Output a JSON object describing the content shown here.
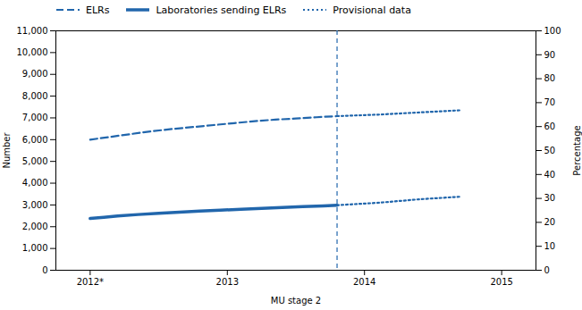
{
  "chart_data": {
    "type": "line",
    "color": "#2166AC",
    "xlabel": "MU stage 2",
    "ylabel": "Number",
    "y2label": "Percentage",
    "xlim": [
      2011.75,
      2015.25
    ],
    "xticks": [
      {
        "value": 2012,
        "label": "2012*"
      },
      2013,
      2014,
      2015
    ],
    "ylim": [
      0,
      11000
    ],
    "yticks": [
      0,
      {
        "value": 1000,
        "label": "1,000"
      },
      {
        "value": 2000,
        "label": "2,000"
      },
      {
        "value": 3000,
        "label": "3,000"
      },
      {
        "value": 4000,
        "label": "4,000"
      },
      {
        "value": 5000,
        "label": "5,000"
      },
      {
        "value": 6000,
        "label": "6,000"
      },
      {
        "value": 7000,
        "label": "7,000"
      },
      {
        "value": 8000,
        "label": "8,000"
      },
      {
        "value": 9000,
        "label": "9,000"
      },
      {
        "value": 10000,
        "label": "10,000"
      },
      {
        "value": 11000,
        "label": "11,000"
      }
    ],
    "y2lim": [
      0,
      100
    ],
    "y2ticks": [
      0,
      10,
      20,
      30,
      40,
      50,
      60,
      70,
      80,
      90,
      100
    ],
    "grid": false,
    "legend": "upper left",
    "series": [
      {
        "name": "ELRs",
        "line_style": "dashed",
        "x": [
          2012,
          2012.15,
          2012.3,
          2012.45,
          2012.6,
          2012.75,
          2012.9,
          2013.05,
          2013.2,
          2013.35,
          2013.5,
          2013.65,
          2013.8
        ],
        "values": [
          6000,
          6130,
          6260,
          6390,
          6490,
          6580,
          6670,
          6760,
          6850,
          6920,
          6970,
          7030,
          7080
        ]
      },
      {
        "name": "Laboratories sending ELRs",
        "line_style": "solid",
        "x": [
          2012,
          2012.1,
          2012.2,
          2012.35,
          2012.5,
          2012.65,
          2012.8,
          2012.95,
          2013.1,
          2013.25,
          2013.4,
          2013.55,
          2013.7,
          2013.8
        ],
        "values": [
          2380,
          2430,
          2490,
          2560,
          2620,
          2670,
          2720,
          2760,
          2800,
          2840,
          2880,
          2920,
          2960,
          2990
        ]
      },
      {
        "name": "Provisional data",
        "line_style": "dotted",
        "x": [
          2013.8,
          2014.1,
          2014.4,
          2014.7
        ],
        "values": [
          7080,
          7150,
          7250,
          7350
        ]
      },
      {
        "name": "Provisional data",
        "line_style": "dotted",
        "x": [
          2013.8,
          2014.1,
          2014.4,
          2014.7
        ],
        "values": [
          2990,
          3100,
          3260,
          3380
        ]
      }
    ],
    "vlines": [
      {
        "x": 2013.8,
        "line_style": "dashed"
      }
    ]
  }
}
